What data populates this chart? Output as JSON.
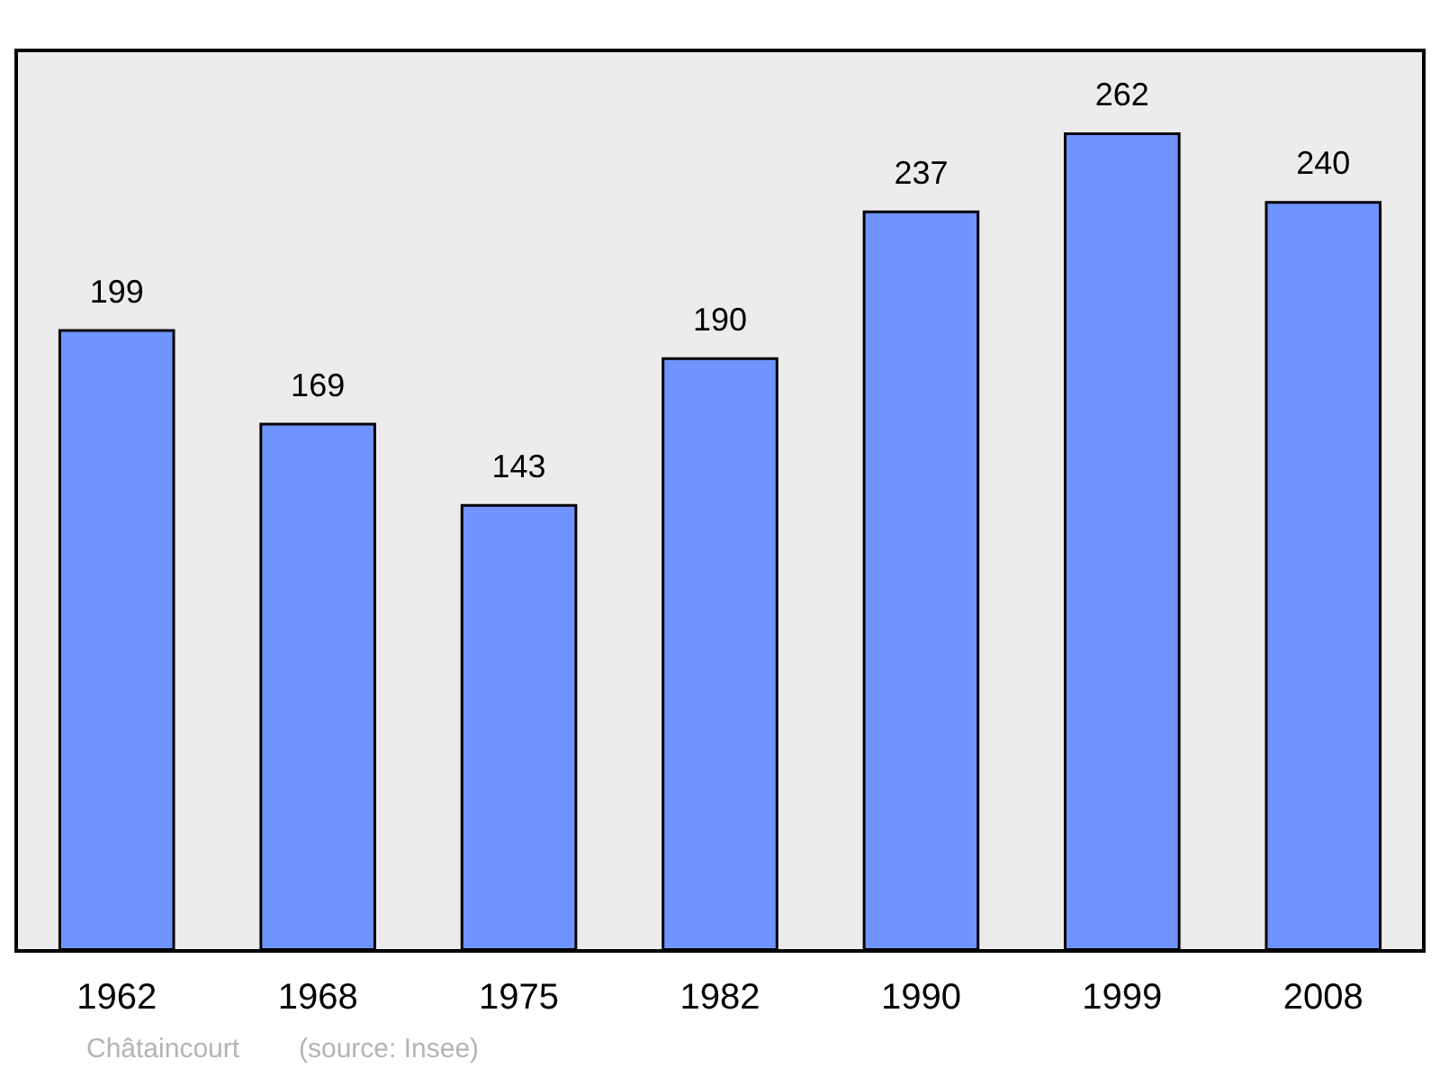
{
  "chart_data": {
    "type": "bar",
    "categories": [
      "1962",
      "1968",
      "1975",
      "1982",
      "1990",
      "1999",
      "2008"
    ],
    "values": [
      199,
      169,
      143,
      190,
      237,
      262,
      240
    ],
    "color": "#7094ff",
    "data_labels": true,
    "annotations": [
      "Châtaincourt",
      "(source: Insee)"
    ]
  }
}
